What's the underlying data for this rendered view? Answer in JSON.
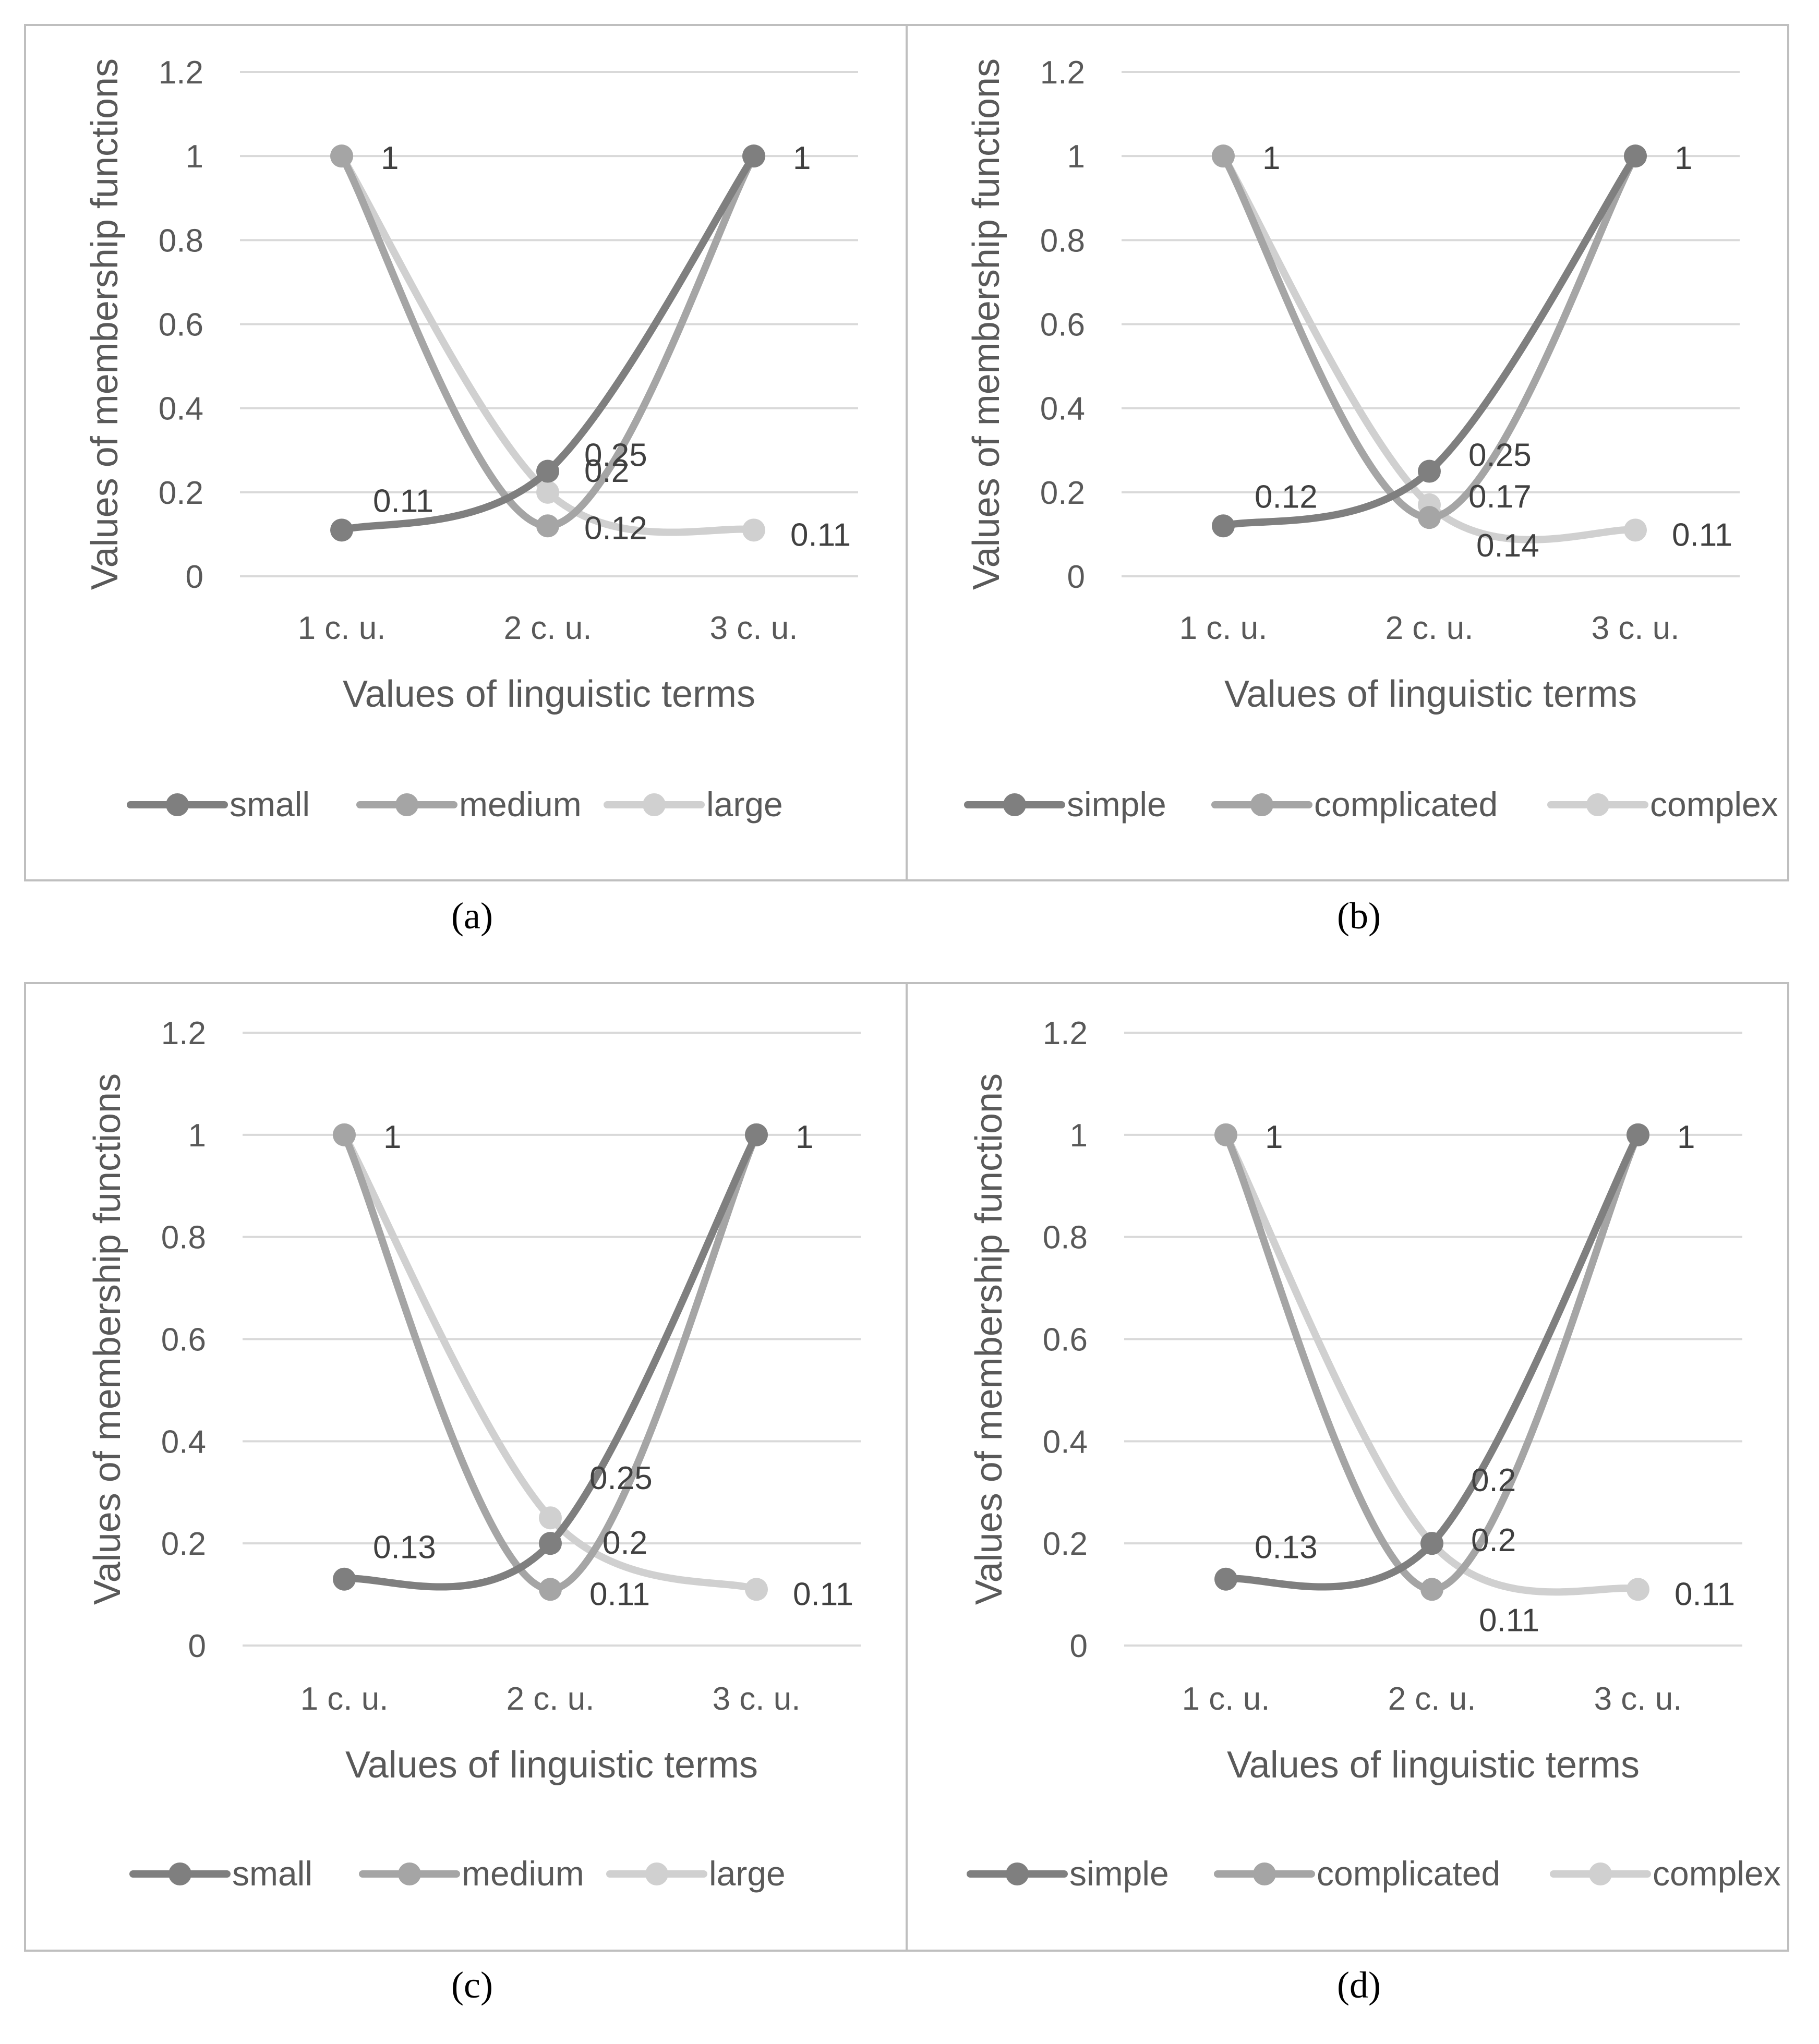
{
  "chart_data": [
    {
      "type": "line",
      "panel": "a",
      "caption": "(a)",
      "categories": [
        "1 c. u.",
        "2 c. u.",
        "3 c. u."
      ],
      "series": [
        {
          "name": "small",
          "color": "#7f7f7f",
          "values": [
            0.11,
            0.25,
            1
          ]
        },
        {
          "name": "medium",
          "color": "#a5a5a5",
          "values": [
            1,
            0.12,
            1
          ]
        },
        {
          "name": "large",
          "color": "#d0d0d0",
          "values": [
            1,
            0.2,
            0.11
          ]
        }
      ],
      "data_labels": [
        {
          "series": 0,
          "point": 0,
          "text": "0.11"
        },
        {
          "series": 0,
          "point": 1,
          "text": "0.25"
        },
        {
          "series": 0,
          "point": 2,
          "text": "1"
        },
        {
          "series": 1,
          "point": 1,
          "text": "0.12"
        },
        {
          "series": 2,
          "point": 0,
          "text": "1"
        },
        {
          "series": 2,
          "point": 1,
          "text": "0.2"
        },
        {
          "series": 2,
          "point": 2,
          "text": "0.11"
        }
      ],
      "xlabel": "Values of linguistic terms",
      "ylabel": "Values of membership functions",
      "yticks": [
        "0",
        "0.2",
        "0.4",
        "0.6",
        "0.8",
        "1",
        "1.2"
      ],
      "ylim": [
        0,
        1.2
      ],
      "grid": true,
      "legend": "bottom"
    },
    {
      "type": "line",
      "panel": "b",
      "caption": "(b)",
      "categories": [
        "1 c. u.",
        "2 c. u.",
        "3 c. u."
      ],
      "series": [
        {
          "name": "simple",
          "color": "#7f7f7f",
          "values": [
            0.12,
            0.25,
            1
          ]
        },
        {
          "name": "complicated",
          "color": "#a5a5a5",
          "values": [
            1,
            0.14,
            1
          ]
        },
        {
          "name": "complex",
          "color": "#d0d0d0",
          "values": [
            1,
            0.17,
            0.11
          ]
        }
      ],
      "data_labels": [
        {
          "series": 0,
          "point": 0,
          "text": "0.12"
        },
        {
          "series": 0,
          "point": 1,
          "text": "0.25"
        },
        {
          "series": 0,
          "point": 2,
          "text": "1"
        },
        {
          "series": 1,
          "point": 1,
          "text": "0.14"
        },
        {
          "series": 2,
          "point": 0,
          "text": "1"
        },
        {
          "series": 2,
          "point": 1,
          "text": "0.17"
        },
        {
          "series": 2,
          "point": 2,
          "text": "0.11"
        }
      ],
      "xlabel": "Values of linguistic terms",
      "ylabel": "Values of membership functions",
      "yticks": [
        "0",
        "0.2",
        "0.4",
        "0.6",
        "0.8",
        "1",
        "1.2"
      ],
      "ylim": [
        0,
        1.2
      ],
      "grid": true,
      "legend": "bottom"
    },
    {
      "type": "line",
      "panel": "c",
      "caption": "(c)",
      "categories": [
        "1 c. u.",
        "2 c. u.",
        "3 c. u."
      ],
      "series": [
        {
          "name": "small",
          "color": "#7f7f7f",
          "values": [
            0.13,
            0.2,
            1
          ]
        },
        {
          "name": "medium",
          "color": "#a5a5a5",
          "values": [
            1,
            0.11,
            1
          ]
        },
        {
          "name": "large",
          "color": "#d0d0d0",
          "values": [
            1,
            0.25,
            0.11
          ]
        }
      ],
      "data_labels": [
        {
          "series": 0,
          "point": 0,
          "text": "0.13"
        },
        {
          "series": 0,
          "point": 1,
          "text": "0.2"
        },
        {
          "series": 0,
          "point": 2,
          "text": "1"
        },
        {
          "series": 1,
          "point": 1,
          "text": "0.11"
        },
        {
          "series": 2,
          "point": 0,
          "text": "1"
        },
        {
          "series": 2,
          "point": 1,
          "text": "0.25"
        },
        {
          "series": 2,
          "point": 2,
          "text": "0.11"
        }
      ],
      "xlabel": "Values of linguistic terms",
      "ylabel": "Values of membership functions",
      "yticks": [
        "0",
        "0.2",
        "0.4",
        "0.6",
        "0.8",
        "1",
        "1.2"
      ],
      "ylim": [
        0,
        1.2
      ],
      "grid": true,
      "legend": "bottom"
    },
    {
      "type": "line",
      "panel": "d",
      "caption": "(d)",
      "categories": [
        "1 c. u.",
        "2 c. u.",
        "3 c. u."
      ],
      "series": [
        {
          "name": "simple",
          "color": "#7f7f7f",
          "values": [
            0.13,
            0.2,
            1
          ]
        },
        {
          "name": "complicated",
          "color": "#a5a5a5",
          "values": [
            1,
            0.11,
            1
          ]
        },
        {
          "name": "complex",
          "color": "#d0d0d0",
          "values": [
            1,
            0.2,
            0.11
          ]
        }
      ],
      "data_labels": [
        {
          "series": 0,
          "point": 0,
          "text": "0.13"
        },
        {
          "series": 0,
          "point": 1,
          "text": "0.2"
        },
        {
          "series": 0,
          "point": 2,
          "text": "1"
        },
        {
          "series": 1,
          "point": 1,
          "text": "0.11"
        },
        {
          "series": 2,
          "point": 0,
          "text": "1"
        },
        {
          "series": 2,
          "point": 1,
          "text": "0.2"
        },
        {
          "series": 2,
          "point": 2,
          "text": "0.11"
        }
      ],
      "xlabel": "Values of linguistic terms",
      "ylabel": "Values of membership functions",
      "yticks": [
        "0",
        "0.2",
        "0.4",
        "0.6",
        "0.8",
        "1",
        "1.2"
      ],
      "ylim": [
        0,
        1.2
      ],
      "grid": true,
      "legend": "bottom"
    }
  ]
}
